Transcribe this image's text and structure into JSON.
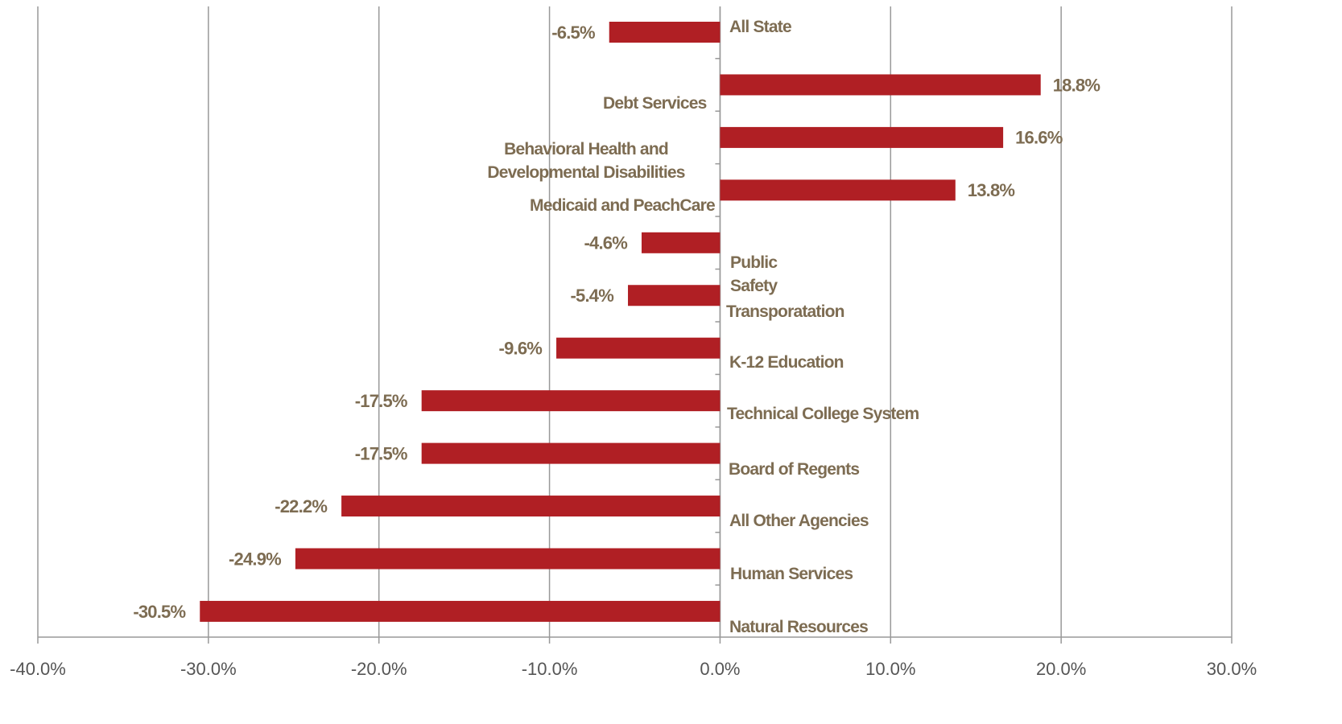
{
  "chart_data": {
    "type": "barh",
    "categories": [
      "All State",
      "Debt Services",
      "Behavioral Health and Developmental Disabilities",
      "Medicaid and PeachCare",
      "Public Safety",
      "Transporatation",
      "K-12 Education",
      "Technical College System",
      "Board of Regents",
      "All Other Agencies",
      "Human Services",
      "Natural Resources"
    ],
    "values": [
      -6.5,
      18.8,
      16.6,
      13.8,
      -4.6,
      -5.4,
      -9.6,
      -17.5,
      -17.5,
      -22.2,
      -24.9,
      -30.5
    ],
    "value_labels": [
      "-6.5%",
      "18.8%",
      "16.6%",
      "13.8%",
      "-4.6%",
      "-5.4%",
      "-9.6%",
      "-17.5%",
      "-17.5%",
      "-22.2%",
      "-24.9%",
      "-30.5%"
    ],
    "color": "#b01f24",
    "xlim": [
      -40,
      30
    ],
    "xticks": [
      {
        "value": -40,
        "label": "-40.0%"
      },
      {
        "value": -30,
        "label": "-30.0%"
      },
      {
        "value": -20,
        "label": "-20.0%"
      },
      {
        "value": -10,
        "label": "-10.0%"
      },
      {
        "value": 0,
        "label": "0.0%"
      },
      {
        "value": 10,
        "label": "10.0%"
      },
      {
        "value": 20,
        "label": "20.0%"
      },
      {
        "value": 30,
        "label": "30.0%"
      }
    ],
    "grid": true
  }
}
